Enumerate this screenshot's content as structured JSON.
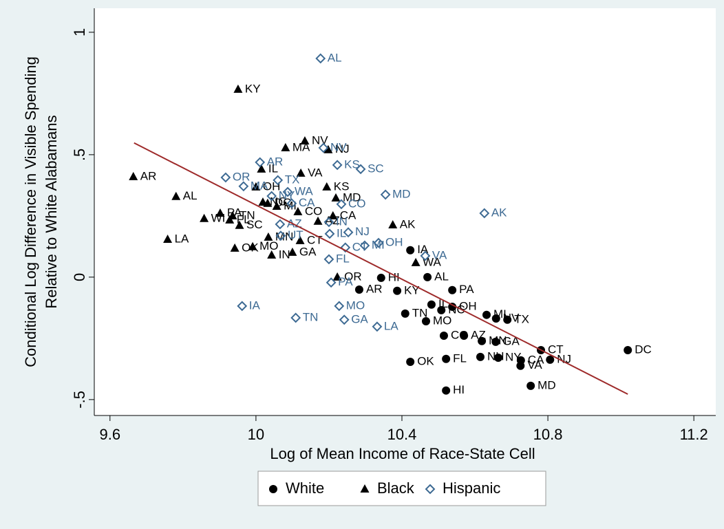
{
  "chart_data": {
    "type": "scatter",
    "ylabel": [
      "Conditional Log Difference in Visible Spending",
      "Relative to White Alabamans"
    ],
    "xlabel": "Log of Mean Income of Race-State Cell",
    "xlim": [
      9.557,
      11.26
    ],
    "ylim": [
      -0.565,
      1.098
    ],
    "xticks": [
      9.6,
      10,
      10.4,
      10.8,
      11.2
    ],
    "yticks": [
      {
        "value": 1,
        "label": "1"
      },
      {
        "value": 0.5,
        "label": ".5"
      },
      0,
      {
        "value": -0.5,
        "label": "-.5"
      }
    ],
    "fit_line": {
      "color": "#9e2a2a",
      "x": [
        9.666,
        11.019
      ],
      "y": [
        0.548,
        -0.478
      ]
    },
    "series": [
      {
        "name": "White",
        "color": "#000000",
        "marker": "circle",
        "labels": [
          "IA",
          "AL",
          "HI",
          "AR",
          "KY",
          "PA",
          "IL",
          "OH",
          "NC",
          "TN",
          "MO",
          "MI",
          "NV",
          "TX",
          "CO",
          "AZ",
          "MN",
          "GA",
          "OK",
          "FL",
          "NH",
          "NY",
          "CA",
          "VA",
          "CT",
          "NJ",
          "DC",
          "MD",
          "HI"
        ],
        "x": [
          10.423,
          10.47,
          10.343,
          10.283,
          10.387,
          10.538,
          10.481,
          10.538,
          10.508,
          10.409,
          10.466,
          10.632,
          10.658,
          10.689,
          10.515,
          10.57,
          10.619,
          10.657,
          10.423,
          10.521,
          10.615,
          10.664,
          10.726,
          10.725,
          10.781,
          10.806,
          11.019,
          10.753,
          10.521
        ],
        "values": [
          0.11,
          0,
          -0.003,
          -0.051,
          -0.056,
          -0.053,
          -0.112,
          -0.121,
          -0.135,
          -0.149,
          -0.18,
          -0.154,
          -0.169,
          -0.174,
          -0.239,
          -0.239,
          -0.261,
          -0.264,
          -0.346,
          -0.334,
          -0.326,
          -0.329,
          -0.34,
          -0.362,
          -0.298,
          -0.337,
          -0.298,
          -0.444,
          -0.463
        ]
      },
      {
        "name": "Black",
        "color": "#000000",
        "marker": "triangle",
        "labels": [
          "KY",
          "NV",
          "MA",
          "NJ",
          "VA",
          "IL",
          "AR",
          "AL",
          "KS",
          "MD",
          "OH",
          "NC",
          "DC",
          "MI",
          "PA",
          "TN",
          "WI",
          "SC",
          "CO",
          "CA",
          "AZ",
          "AK",
          "LA",
          "OK",
          "MO",
          "MN",
          "CT",
          "IN",
          "GA",
          "WA",
          "OR",
          "FL"
        ],
        "x": [
          9.951,
          10.134,
          10.081,
          10.198,
          10.123,
          10.015,
          9.664,
          9.781,
          10.194,
          10.219,
          10,
          10.019,
          10.032,
          10.057,
          9.902,
          9.936,
          9.858,
          9.955,
          10.115,
          10.211,
          10.17,
          10.375,
          9.758,
          9.942,
          9.991,
          10.034,
          10.121,
          10.043,
          10.1,
          10.438,
          10.223,
          9.928
        ],
        "values": [
          0.767,
          0.556,
          0.528,
          0.52,
          0.424,
          0.441,
          0.41,
          0.329,
          0.368,
          0.323,
          0.368,
          0.306,
          0.301,
          0.289,
          0.261,
          0.25,
          0.239,
          0.211,
          0.267,
          0.25,
          0.228,
          0.213,
          0.154,
          0.118,
          0.124,
          0.163,
          0.149,
          0.09,
          0.101,
          0.059,
          0,
          0.233
        ]
      },
      {
        "name": "Hispanic",
        "color": "#3d6a93",
        "marker": "diamond",
        "labels": [
          "AL",
          "NV",
          "AR",
          "KS",
          "SC",
          "TX",
          "OR",
          "WA",
          "MA",
          "NY",
          "CA",
          "CO",
          "MD",
          "AK",
          "AZ",
          "IN",
          "UT",
          "IL",
          "NJ",
          "CT",
          "MI",
          "OH",
          "VA",
          "FL",
          "PA",
          "MO",
          "IA",
          "TN",
          "GA",
          "LA"
        ],
        "x": [
          10.177,
          10.185,
          10.011,
          10.223,
          10.287,
          10.06,
          9.917,
          10.087,
          9.966,
          10.043,
          10.098,
          10.234,
          10.355,
          10.626,
          10.066,
          10.2,
          10.068,
          10.202,
          10.253,
          10.245,
          10.298,
          10.336,
          10.464,
          10.2,
          10.206,
          10.228,
          9.962,
          10.109,
          10.242,
          10.332
        ],
        "values": [
          0.893,
          0.528,
          0.469,
          0.458,
          0.441,
          0.396,
          0.407,
          0.348,
          0.371,
          0.331,
          0.301,
          0.298,
          0.337,
          0.261,
          0.216,
          0.225,
          0.169,
          0.177,
          0.183,
          0.121,
          0.129,
          0.14,
          0.087,
          0.073,
          -0.022,
          -0.118,
          -0.118,
          -0.166,
          -0.174,
          -0.202
        ]
      }
    ]
  }
}
